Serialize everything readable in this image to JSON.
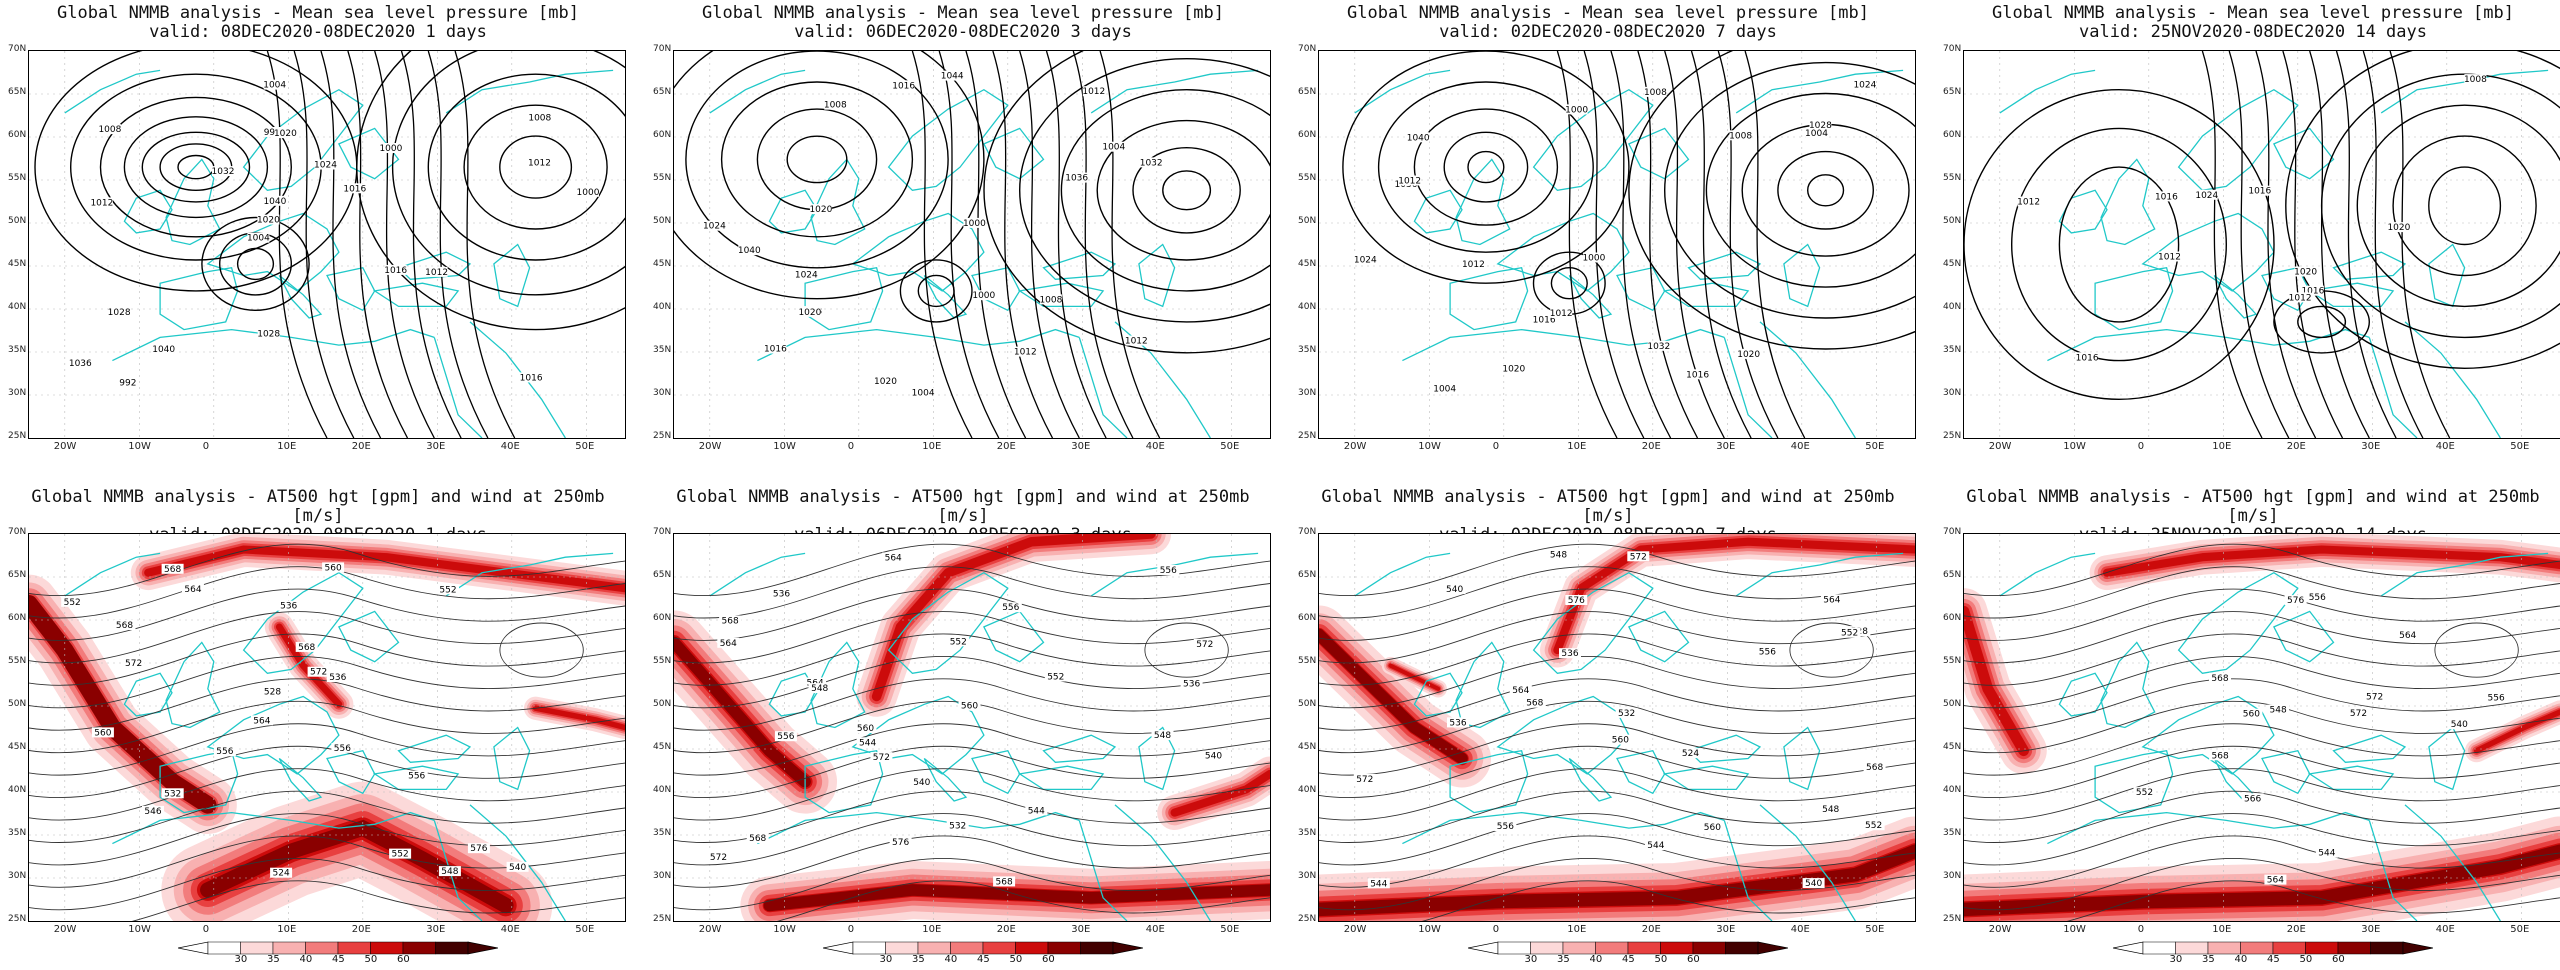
{
  "top_title": "Global NMMB analysis - Mean sea level pressure [mb]",
  "bottom_title": "Global NMMB analysis - AT500 hgt [gpm] and wind at 250mb [m/s]",
  "panels": [
    {
      "valid": "valid: 08DEC2020-08DEC2020   1 days"
    },
    {
      "valid": "valid: 06DEC2020-08DEC2020   3 days"
    },
    {
      "valid": "valid: 02DEC2020-08DEC2020   7 days"
    },
    {
      "valid": "valid: 25NOV2020-08DEC2020  14 days"
    }
  ],
  "lat_labels": [
    "70N",
    "65N",
    "60N",
    "55N",
    "50N",
    "45N",
    "40N",
    "35N",
    "30N",
    "25N"
  ],
  "lon_labels": [
    "20W",
    "10W",
    "0",
    "10E",
    "20E",
    "30E",
    "40E",
    "50E"
  ],
  "colorbar_labels": [
    "30",
    "35",
    "40",
    "45",
    "50",
    "60"
  ],
  "colors": {
    "coast": "#20c8c8",
    "contour": "#000000",
    "wind_scale": [
      "#ffffff",
      "#fcd9d9",
      "#f8b1b1",
      "#f27c7c",
      "#e84040",
      "#cc0b0b",
      "#8a0000",
      "#420000"
    ]
  },
  "mslp_labels": [
    [
      "1016",
      "1012",
      "1008",
      "1004",
      "1000",
      "992",
      "996",
      "1024",
      "1028",
      "1032",
      "1036",
      "1040",
      "1020",
      "1016",
      "1012",
      "1008",
      "1004",
      "1000",
      "1016",
      "1012",
      "1020",
      "1028",
      "1040"
    ],
    [
      "1016",
      "1012",
      "1008",
      "1004",
      "1000",
      "1020",
      "1024",
      "1028",
      "1032",
      "1036",
      "1040",
      "1044",
      "1008",
      "1000",
      "1004",
      "1016",
      "1012",
      "1024",
      "1020",
      "1020",
      "1012"
    ],
    [
      "1016",
      "1012",
      "1008",
      "1004",
      "1000",
      "1020",
      "1024",
      "1028",
      "1032",
      "1036",
      "1040",
      "1008",
      "1004",
      "1000",
      "1012",
      "1016",
      "1012",
      "1024",
      "1020"
    ],
    [
      "1016",
      "1012",
      "1008",
      "1012",
      "1012",
      "1024",
      "1020",
      "1020",
      "1016",
      "1016",
      "1016"
    ]
  ],
  "hgt_labels": [
    [
      "546",
      "552",
      "556",
      "560",
      "564",
      "568",
      "524",
      "528",
      "532",
      "536",
      "536",
      "540",
      "552",
      "556",
      "560",
      "564",
      "568",
      "572",
      "576",
      "572",
      "568",
      "556",
      "552",
      "548"
    ],
    [
      "540",
      "544",
      "548",
      "552",
      "556",
      "560",
      "564",
      "568",
      "572",
      "536",
      "532",
      "536",
      "540",
      "544",
      "548",
      "552",
      "556",
      "560",
      "564",
      "568",
      "572",
      "576",
      "572",
      "568",
      "564",
      "556"
    ],
    [
      "524",
      "528",
      "536",
      "540",
      "544",
      "548",
      "552",
      "556",
      "560",
      "564",
      "532",
      "536",
      "540",
      "544",
      "548",
      "552",
      "556",
      "560",
      "564",
      "568",
      "572",
      "576",
      "572",
      "568"
    ],
    [
      "540",
      "544",
      "548",
      "552",
      "556",
      "560",
      "564",
      "566",
      "568",
      "572",
      "576",
      "572",
      "568",
      "564",
      "556"
    ]
  ]
}
